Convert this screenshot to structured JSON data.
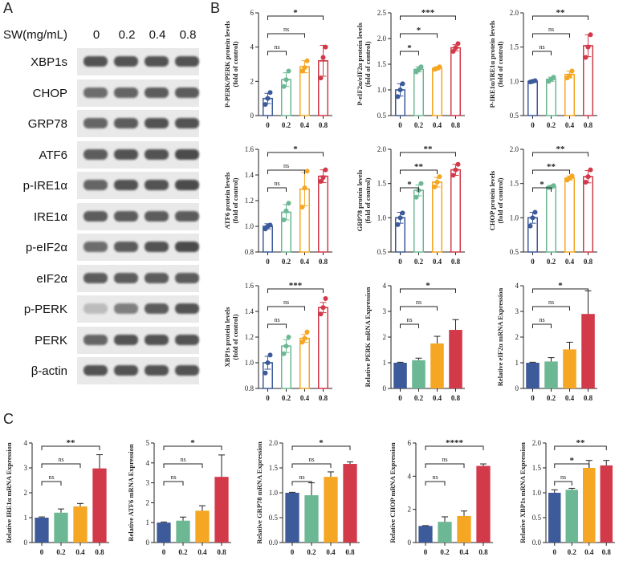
{
  "panels": {
    "a": "A",
    "b": "B",
    "c": "C"
  },
  "blot": {
    "sw_label": "SW(mg/mL)",
    "concentrations": [
      "0",
      "0.2",
      "0.4",
      "0.8"
    ],
    "rows": [
      {
        "name": "XBP1s",
        "intensity": [
          0.85,
          0.85,
          0.85,
          0.85
        ]
      },
      {
        "name": "CHOP",
        "intensity": [
          0.7,
          0.75,
          0.8,
          0.8
        ]
      },
      {
        "name": "GRP78",
        "intensity": [
          0.75,
          0.8,
          0.85,
          0.85
        ]
      },
      {
        "name": "ATF6",
        "intensity": [
          0.8,
          0.85,
          0.85,
          0.9
        ]
      },
      {
        "name": "p-IRE1α",
        "intensity": [
          0.75,
          0.85,
          0.85,
          0.9
        ]
      },
      {
        "name": "IRE1α",
        "intensity": [
          0.8,
          0.8,
          0.8,
          0.8
        ]
      },
      {
        "name": "p-eIF2α",
        "intensity": [
          0.7,
          0.8,
          0.85,
          0.9
        ]
      },
      {
        "name": "eIF2α",
        "intensity": [
          0.8,
          0.8,
          0.8,
          0.8
        ]
      },
      {
        "name": "p-PERK",
        "intensity": [
          0.25,
          0.6,
          0.8,
          0.85
        ]
      },
      {
        "name": "PERK",
        "intensity": [
          0.75,
          0.85,
          0.85,
          0.85
        ]
      },
      {
        "name": "β-actin",
        "intensity": [
          0.85,
          0.85,
          0.85,
          0.85
        ]
      }
    ]
  },
  "colors": [
    "#3d5a9a",
    "#6db894",
    "#f5a623",
    "#d23a4a"
  ],
  "chart_data": [
    {
      "type": "bar",
      "style": "dot",
      "categories": [
        "0",
        "0.2",
        "0.4",
        "0.8"
      ],
      "values": [
        1.0,
        2.1,
        2.85,
        3.2
      ],
      "errors": [
        0.3,
        0.4,
        0.35,
        0.9
      ],
      "points": [
        [
          0.65,
          1.0,
          1.35
        ],
        [
          1.7,
          2.1,
          2.6
        ],
        [
          2.6,
          2.8,
          3.2
        ],
        [
          2.2,
          3.4,
          4.0
        ]
      ],
      "ylabel_lines": [
        "P-PERK/PERK protein levels",
        "(fold of control)"
      ],
      "ylim": [
        0,
        6
      ],
      "yticks": [
        0,
        2,
        4,
        6
      ],
      "yticklabels": [
        "0",
        "2",
        "4",
        "6"
      ],
      "sig": [
        {
          "from": 0,
          "to": 1,
          "label": "ns"
        },
        {
          "from": 0,
          "to": 2,
          "label": "ns"
        },
        {
          "from": 0,
          "to": 3,
          "label": "*"
        }
      ]
    },
    {
      "type": "bar",
      "style": "dot",
      "categories": [
        "0",
        "0.2",
        "0.4",
        "0.8"
      ],
      "values": [
        1.0,
        1.4,
        1.42,
        1.82
      ],
      "errors": [
        0.12,
        0.05,
        0.03,
        0.06
      ],
      "points": [
        [
          0.87,
          1.0,
          1.12
        ],
        [
          1.35,
          1.4,
          1.45
        ],
        [
          1.4,
          1.42,
          1.45
        ],
        [
          1.75,
          1.82,
          1.9
        ]
      ],
      "ylabel_lines": [
        "P-eIF2α/eIF2α protein levels",
        "(fold of control)"
      ],
      "ylim": [
        0.5,
        2.5
      ],
      "yticks": [
        0.5,
        1.0,
        1.5,
        2.0,
        2.5
      ],
      "yticklabels": [
        "0.5",
        "1.0",
        "1.5",
        "2.0",
        "2.5"
      ],
      "sig": [
        {
          "from": 0,
          "to": 1,
          "label": "*"
        },
        {
          "from": 0,
          "to": 2,
          "label": "*"
        },
        {
          "from": 0,
          "to": 3,
          "label": "***"
        }
      ]
    },
    {
      "type": "bar",
      "style": "dot",
      "categories": [
        "0",
        "0.2",
        "0.4",
        "0.8"
      ],
      "values": [
        1.0,
        1.03,
        1.1,
        1.52
      ],
      "errors": [
        0.01,
        0.03,
        0.05,
        0.16
      ],
      "points": [
        [
          0.99,
          1.0,
          1.01
        ],
        [
          1.0,
          1.03,
          1.06
        ],
        [
          1.05,
          1.08,
          1.15
        ],
        [
          1.35,
          1.5,
          1.68
        ]
      ],
      "ylabel_lines": [
        "P-IRE1α/IRE1α protein levels",
        "(fold of control)"
      ],
      "ylim": [
        0.5,
        2.0
      ],
      "yticks": [
        0.5,
        1.0,
        1.5,
        2.0
      ],
      "yticklabels": [
        "0.5",
        "1.0",
        "1.5",
        "2.0"
      ],
      "sig": [
        {
          "from": 0,
          "to": 1,
          "label": "ns"
        },
        {
          "from": 0,
          "to": 2,
          "label": "ns"
        },
        {
          "from": 0,
          "to": 3,
          "label": "**"
        }
      ]
    },
    {
      "type": "bar",
      "style": "dot",
      "categories": [
        "0",
        "0.2",
        "0.4",
        "0.8"
      ],
      "values": [
        1.0,
        1.11,
        1.29,
        1.39
      ],
      "errors": [
        0.02,
        0.06,
        0.13,
        0.05
      ],
      "points": [
        [
          0.98,
          1.0,
          1.01
        ],
        [
          1.05,
          1.12,
          1.18
        ],
        [
          1.15,
          1.3,
          1.43
        ],
        [
          1.35,
          1.38,
          1.44
        ]
      ],
      "ylabel_lines": [
        "ATF6 protein levels",
        "(fold of control)"
      ],
      "ylim": [
        0.8,
        1.6
      ],
      "yticks": [
        0.8,
        1.0,
        1.2,
        1.4,
        1.6
      ],
      "yticklabels": [
        "0.8",
        "1.0",
        "1.2",
        "1.4",
        "1.6"
      ],
      "sig": [
        {
          "from": 0,
          "to": 1,
          "label": "ns"
        },
        {
          "from": 0,
          "to": 2,
          "label": "ns"
        },
        {
          "from": 0,
          "to": 3,
          "label": "*"
        }
      ]
    },
    {
      "type": "bar",
      "style": "dot",
      "categories": [
        "0",
        "0.2",
        "0.4",
        "0.8"
      ],
      "values": [
        1.0,
        1.4,
        1.52,
        1.7
      ],
      "errors": [
        0.08,
        0.08,
        0.07,
        0.08
      ],
      "points": [
        [
          0.9,
          1.0,
          1.07
        ],
        [
          1.3,
          1.4,
          1.5
        ],
        [
          1.45,
          1.52,
          1.6
        ],
        [
          1.62,
          1.7,
          1.78
        ]
      ],
      "ylabel_lines": [
        "GRP78 protein levels",
        "(fold of control)"
      ],
      "ylim": [
        0.5,
        2.0
      ],
      "yticks": [
        0.5,
        1.0,
        1.5,
        2.0
      ],
      "yticklabels": [
        "0.5",
        "1.0",
        "1.5",
        "2.0"
      ],
      "sig": [
        {
          "from": 0,
          "to": 1,
          "label": "*"
        },
        {
          "from": 0,
          "to": 2,
          "label": "**"
        },
        {
          "from": 0,
          "to": 3,
          "label": "**"
        }
      ]
    },
    {
      "type": "bar",
      "style": "dot",
      "categories": [
        "0",
        "0.2",
        "0.4",
        "0.8"
      ],
      "values": [
        1.0,
        1.45,
        1.58,
        1.6
      ],
      "errors": [
        0.08,
        0.02,
        0.03,
        0.09
      ],
      "points": [
        [
          0.88,
          1.0,
          1.08
        ],
        [
          1.44,
          1.45,
          1.47
        ],
        [
          1.55,
          1.58,
          1.61
        ],
        [
          1.52,
          1.6,
          1.7
        ]
      ],
      "ylabel_lines": [
        "CHOP protein levels",
        "(fold of control)"
      ],
      "ylim": [
        0.5,
        2.0
      ],
      "yticks": [
        0.5,
        1.0,
        1.5,
        2.0
      ],
      "yticklabels": [
        "0.5",
        "1.0",
        "1.5",
        "2.0"
      ],
      "sig": [
        {
          "from": 0,
          "to": 1,
          "label": "*"
        },
        {
          "from": 0,
          "to": 2,
          "label": "**"
        },
        {
          "from": 0,
          "to": 3,
          "label": "**"
        }
      ]
    },
    {
      "type": "bar",
      "style": "dot",
      "categories": [
        "0",
        "0.2",
        "0.4",
        "0.8"
      ],
      "values": [
        1.0,
        1.13,
        1.19,
        1.43
      ],
      "errors": [
        0.05,
        0.05,
        0.03,
        0.04
      ],
      "points": [
        [
          0.92,
          1.0,
          1.06
        ],
        [
          1.07,
          1.13,
          1.2
        ],
        [
          1.16,
          1.19,
          1.24
        ],
        [
          1.38,
          1.43,
          1.5
        ]
      ],
      "ylabel_lines": [
        "XBP1s protein levels",
        "(fold of control)"
      ],
      "ylim": [
        0.8,
        1.6
      ],
      "yticks": [
        0.8,
        1.0,
        1.2,
        1.4,
        1.6
      ],
      "yticklabels": [
        "0.8",
        "1.0",
        "1.2",
        "1.4",
        "1.6"
      ],
      "sig": [
        {
          "from": 0,
          "to": 1,
          "label": "ns"
        },
        {
          "from": 0,
          "to": 2,
          "label": "ns"
        },
        {
          "from": 0,
          "to": 3,
          "label": "***"
        }
      ]
    },
    {
      "type": "bar",
      "style": "solid",
      "categories": [
        "0",
        "0.2",
        "0.4",
        "0.8"
      ],
      "values": [
        1.0,
        1.1,
        1.75,
        2.28
      ],
      "errors": [
        0.02,
        0.08,
        0.28,
        0.4
      ],
      "ylabel_lines": [
        "Relative PERK mRNA Expression"
      ],
      "ylim": [
        0,
        4
      ],
      "yticks": [
        0,
        1,
        2,
        3,
        4
      ],
      "yticklabels": [
        "0",
        "1",
        "2",
        "3",
        "4"
      ],
      "sig": [
        {
          "from": 0,
          "to": 1,
          "label": "ns"
        },
        {
          "from": 0,
          "to": 2,
          "label": "ns"
        },
        {
          "from": 0,
          "to": 3,
          "label": "*"
        }
      ]
    },
    {
      "type": "bar",
      "style": "solid",
      "categories": [
        "0",
        "0.2",
        "0.4",
        "0.8"
      ],
      "values": [
        1.0,
        1.05,
        1.52,
        2.9
      ],
      "errors": [
        0.02,
        0.15,
        0.28,
        0.9
      ],
      "ylabel_lines": [
        "Relative eIF2α mRNA Expression"
      ],
      "ylim": [
        0,
        4
      ],
      "yticks": [
        0,
        1,
        2,
        3,
        4
      ],
      "yticklabels": [
        "0",
        "1",
        "2",
        "3",
        "4"
      ],
      "sig": [
        {
          "from": 0,
          "to": 1,
          "label": "ns"
        },
        {
          "from": 0,
          "to": 2,
          "label": "ns"
        },
        {
          "from": 0,
          "to": 3,
          "label": "*"
        }
      ]
    },
    {
      "type": "bar",
      "style": "solid",
      "categories": [
        "0",
        "0.2",
        "0.4",
        "0.8"
      ],
      "values": [
        1.0,
        1.2,
        1.45,
        2.98
      ],
      "errors": [
        0.03,
        0.15,
        0.12,
        0.55
      ],
      "ylabel_lines": [
        "Relative IRE1α mRNA Expression"
      ],
      "ylim": [
        0,
        4
      ],
      "yticks": [
        0,
        1,
        2,
        3,
        4
      ],
      "yticklabels": [
        "0",
        "1",
        "2",
        "3",
        "4"
      ],
      "sig": [
        {
          "from": 0,
          "to": 1,
          "label": "ns"
        },
        {
          "from": 0,
          "to": 2,
          "label": "ns"
        },
        {
          "from": 0,
          "to": 3,
          "label": "**"
        }
      ]
    },
    {
      "type": "bar",
      "style": "solid",
      "categories": [
        "0",
        "0.2",
        "0.4",
        "0.8"
      ],
      "values": [
        1.0,
        1.1,
        1.6,
        3.3
      ],
      "errors": [
        0.03,
        0.18,
        0.25,
        1.1
      ],
      "ylabel_lines": [
        "Relative ATF6 mRNA Expression"
      ],
      "ylim": [
        0,
        5
      ],
      "yticks": [
        0,
        1,
        2,
        3,
        4,
        5
      ],
      "yticklabels": [
        "0",
        "1",
        "2",
        "3",
        "4",
        "5"
      ],
      "sig": [
        {
          "from": 0,
          "to": 1,
          "label": "ns"
        },
        {
          "from": 0,
          "to": 2,
          "label": "ns"
        },
        {
          "from": 0,
          "to": 3,
          "label": "*"
        }
      ]
    },
    {
      "type": "bar",
      "style": "solid",
      "categories": [
        "0",
        "0.2",
        "0.4",
        "0.8"
      ],
      "values": [
        1.0,
        0.95,
        1.32,
        1.58
      ],
      "errors": [
        0.01,
        0.25,
        0.1,
        0.04
      ],
      "ylabel_lines": [
        "Relative GRP78 mRNA Expression"
      ],
      "ylim": [
        0,
        2.0
      ],
      "yticks": [
        0,
        0.5,
        1.0,
        1.5,
        2.0
      ],
      "yticklabels": [
        "0.0",
        "0.5",
        "1.0",
        "1.5",
        "2.0"
      ],
      "sig": [
        {
          "from": 0,
          "to": 1,
          "label": "ns"
        },
        {
          "from": 0,
          "to": 2,
          "label": "ns"
        },
        {
          "from": 0,
          "to": 3,
          "label": "*"
        }
      ]
    },
    {
      "type": "bar",
      "style": "solid",
      "categories": [
        "0",
        "0.2",
        "0.4",
        "0.8"
      ],
      "values": [
        1.0,
        1.25,
        1.6,
        4.62
      ],
      "errors": [
        0.02,
        0.3,
        0.3,
        0.12
      ],
      "ylabel_lines": [
        "Relative CHOP mRNA Expression"
      ],
      "ylim": [
        0,
        6
      ],
      "yticks": [
        0,
        2,
        4,
        6
      ],
      "yticklabels": [
        "0",
        "2",
        "4",
        "6"
      ],
      "sig": [
        {
          "from": 0,
          "to": 1,
          "label": "ns"
        },
        {
          "from": 0,
          "to": 2,
          "label": "ns"
        },
        {
          "from": 0,
          "to": 3,
          "label": "****"
        }
      ]
    },
    {
      "type": "bar",
      "style": "solid",
      "categories": [
        "0",
        "0.2",
        "0.4",
        "0.8"
      ],
      "values": [
        1.0,
        1.06,
        1.5,
        1.55
      ],
      "errors": [
        0.06,
        0.03,
        0.15,
        0.1
      ],
      "ylabel_lines": [
        "Relative XBP1s mRNA Expression"
      ],
      "ylim": [
        0,
        2.0
      ],
      "yticks": [
        0,
        0.5,
        1.0,
        1.5,
        2.0
      ],
      "yticklabels": [
        "0.0",
        "0.5",
        "1.0",
        "1.5",
        "2.0"
      ],
      "sig": [
        {
          "from": 0,
          "to": 1,
          "label": "ns"
        },
        {
          "from": 0,
          "to": 2,
          "label": "*"
        },
        {
          "from": 0,
          "to": 3,
          "label": "**"
        }
      ]
    }
  ]
}
